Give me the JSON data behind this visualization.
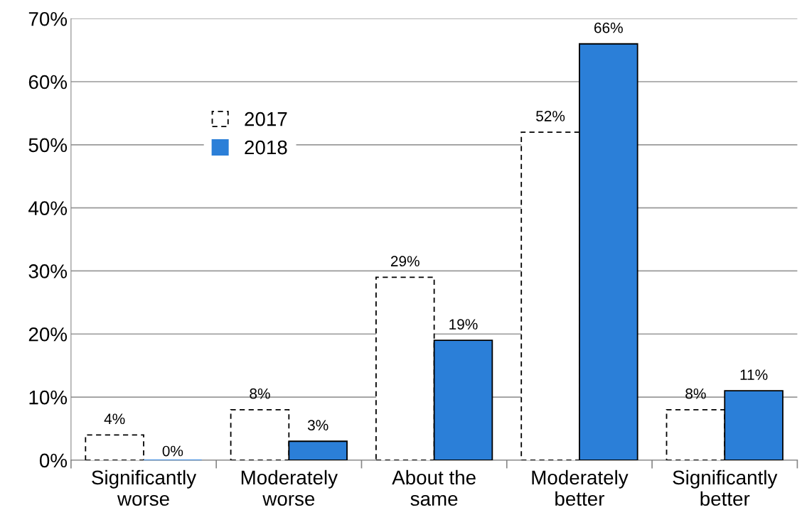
{
  "chart_data": {
    "type": "bar",
    "categories": [
      "Significantly\nworse",
      "Moderately\nworse",
      "About the\nsame",
      "Moderately\nbetter",
      "Significantly\nbetter"
    ],
    "series": [
      {
        "name": "2017",
        "color": "#ffffff",
        "line_style": "dashed",
        "values": [
          4,
          8,
          29,
          52,
          8
        ],
        "value_labels": [
          "4%",
          "8%",
          "29%",
          "52%",
          "8%"
        ]
      },
      {
        "name": "2018",
        "color": "#2b7fd8",
        "line_style": "solid",
        "values": [
          0,
          3,
          19,
          66,
          11
        ],
        "value_labels": [
          "0%",
          "3%",
          "19%",
          "66%",
          "11%"
        ]
      }
    ],
    "ylim": [
      0,
      70
    ],
    "yticks": [
      {
        "value": 0,
        "label": "0%"
      },
      {
        "value": 10,
        "label": "10%"
      },
      {
        "value": 20,
        "label": "20%"
      },
      {
        "value": 30,
        "label": "30%"
      },
      {
        "value": 40,
        "label": "40%"
      },
      {
        "value": 50,
        "label": "50%"
      },
      {
        "value": 60,
        "label": "60%"
      },
      {
        "value": 70,
        "label": "70%"
      }
    ],
    "grid": "y",
    "legend": "top left"
  }
}
